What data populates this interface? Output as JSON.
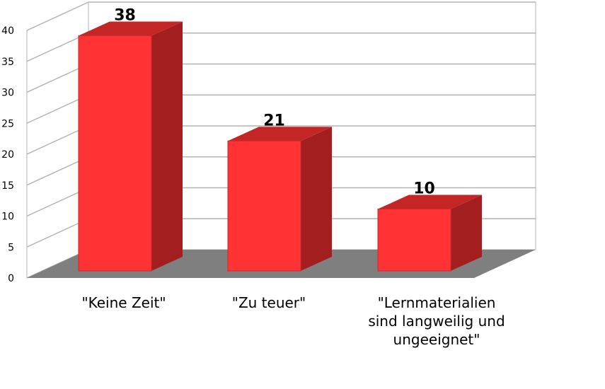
{
  "chart_data": {
    "type": "bar",
    "categories": [
      "\"Keine Zeit\"",
      "\"Zu teuer\"",
      "\"Lernmaterialien sind langweilig und ungeeignet\""
    ],
    "category_lines": [
      [
        "\"Keine Zeit\""
      ],
      [
        "\"Zu teuer\""
      ],
      [
        "\"Lernmaterialien",
        "sind langweilig und",
        "ungeeignet\""
      ]
    ],
    "values": [
      38,
      21,
      10
    ],
    "data_labels": [
      "38",
      "21",
      "10"
    ],
    "y_ticks": [
      "0",
      "5",
      "10",
      "15",
      "20",
      "25",
      "30",
      "35",
      "40"
    ],
    "ylim": [
      0,
      40
    ],
    "grid": true,
    "three_d": true,
    "title": "",
    "xlabel": "",
    "ylabel": "",
    "colors": {
      "bar_front": "#ff3333",
      "bar_side": "#a31f1f",
      "bar_top": "#c42626",
      "floor": "#7f7f7f",
      "grid": "#b3b3b3",
      "background": "#ffffff"
    }
  }
}
